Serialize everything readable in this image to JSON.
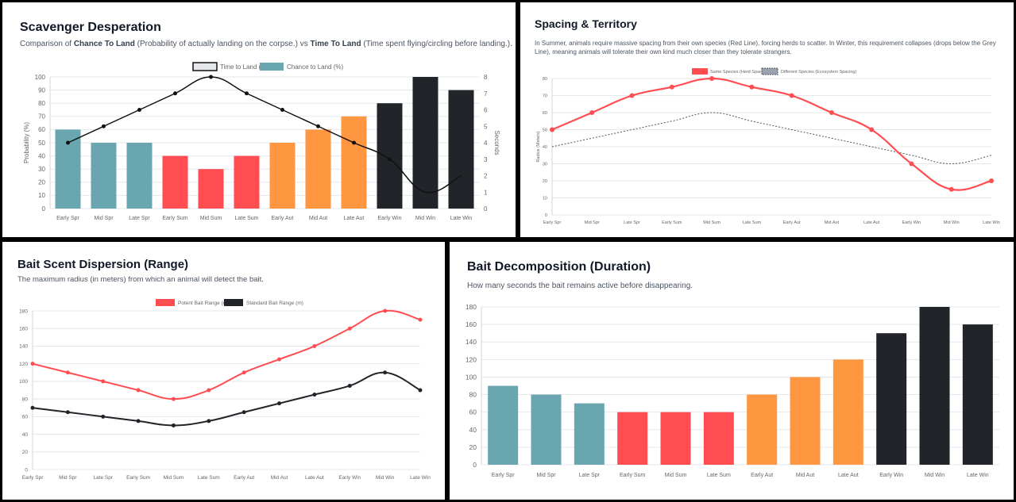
{
  "panels": {
    "p1": {
      "title": "Scavenger Desperation",
      "subtitle": {
        "t1": "Comparison of ",
        "b1": "Chance To Land",
        "t2": " (Probability of actually landing on the corpse.) vs ",
        "b2": "Time To Land",
        "t3": " (Time spent flying/circling before landing.)."
      }
    },
    "p2": {
      "title": "Spacing & Territory",
      "subtitle": "In Summer, animals require massive spacing from their own species (Red Line), forcing herds to scatter. In Winter, this requirement collapses (drops below the Grey Line), meaning animals will tolerate their own kind much closer than they tolerate strangers."
    },
    "p3": {
      "title": "Bait Scent Dispersion (Range)",
      "subtitle": "The maximum radius (in meters) from which an animal will detect the bait."
    },
    "p4": {
      "title": "Bait Decomposition (Duration)",
      "subtitle": "How many seconds the bait remains active before disappearing."
    }
  },
  "colors": {
    "teal": "#69a6b0",
    "red": "#ff4d52",
    "orange": "#ff9640",
    "black": "#212428",
    "grid": "#e5e7eb",
    "dash": "#555555"
  },
  "chart_data": [
    {
      "type": "bar",
      "categories": [
        "Early Spr",
        "Mid Spr",
        "Late Spr",
        "Early Sum",
        "Mid Sum",
        "Late Sum",
        "Early Aut",
        "Mid Aut",
        "Late Aut",
        "Early Win",
        "Mid Win",
        "Late Win"
      ],
      "series": [
        {
          "name": "Chance to Land (%)",
          "type": "bar",
          "axis": "left",
          "values": [
            60,
            50,
            50,
            40,
            30,
            40,
            50,
            60,
            70,
            80,
            100,
            90
          ]
        },
        {
          "name": "Time to Land (s)",
          "type": "line",
          "axis": "right",
          "values": [
            4,
            5,
            6,
            7,
            8,
            7,
            6,
            5,
            4,
            3,
            1,
            2
          ]
        }
      ],
      "bar_colors": [
        "teal",
        "teal",
        "teal",
        "red",
        "red",
        "red",
        "orange",
        "orange",
        "orange",
        "black",
        "black",
        "black"
      ],
      "ylabel": "Probability (%)",
      "y2label": "Seconds",
      "ylim": [
        0,
        100
      ],
      "y2lim": [
        0,
        8
      ],
      "legend": "top",
      "grid": true
    },
    {
      "type": "line",
      "categories": [
        "Early Spr",
        "Mid Spr",
        "Late Spr",
        "Early Sum",
        "Mid Sum",
        "Late Sum",
        "Early Aut",
        "Mid Aut",
        "Late Aut",
        "Early Win",
        "Mid Win",
        "Late Win"
      ],
      "series": [
        {
          "name": "Same Species (Herd Spacing)",
          "values": [
            50,
            60,
            70,
            75,
            80,
            75,
            70,
            60,
            50,
            30,
            15,
            20
          ]
        },
        {
          "name": "Different Species (Ecosystem Spacing)",
          "values": [
            40,
            45,
            50,
            55,
            60,
            55,
            50,
            45,
            40,
            35,
            30,
            35
          ]
        }
      ],
      "ylabel": "Radius (Meters)",
      "ylim": [
        0,
        80
      ],
      "legend": "top",
      "grid": true
    },
    {
      "type": "line",
      "categories": [
        "Early Spr",
        "Mid Spr",
        "Late Spr",
        "Early Sum",
        "Mid Sum",
        "Late Sum",
        "Early Aut",
        "Mid Aut",
        "Late Aut",
        "Early Win",
        "Mid Win",
        "Late Win"
      ],
      "series": [
        {
          "name": "Potent Bait Range (m)",
          "values": [
            120,
            110,
            100,
            90,
            80,
            90,
            110,
            125,
            140,
            160,
            180,
            170
          ]
        },
        {
          "name": "Standard Bait Range (m)",
          "values": [
            70,
            65,
            60,
            55,
            50,
            55,
            65,
            75,
            85,
            95,
            110,
            90
          ]
        }
      ],
      "ylim": [
        0,
        180
      ],
      "legend": "top",
      "grid": true
    },
    {
      "type": "bar",
      "categories": [
        "Early Spr",
        "Mid Spr",
        "Late Spr",
        "Early Sum",
        "Mid Sum",
        "Late Sum",
        "Early Aut",
        "Mid Aut",
        "Late Aut",
        "Early Win",
        "Mid Win",
        "Late Win"
      ],
      "values": [
        90,
        80,
        70,
        60,
        60,
        60,
        80,
        100,
        120,
        150,
        180,
        160
      ],
      "bar_colors": [
        "teal",
        "teal",
        "teal",
        "red",
        "red",
        "red",
        "orange",
        "orange",
        "orange",
        "black",
        "black",
        "black"
      ],
      "ylim": [
        0,
        180
      ],
      "grid": true
    }
  ]
}
